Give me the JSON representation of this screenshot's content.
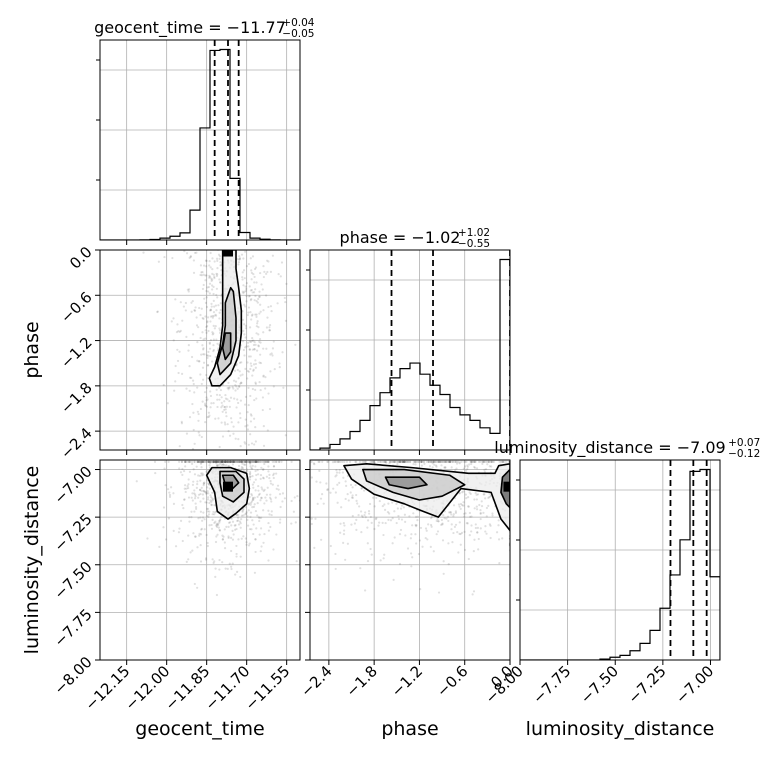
{
  "chart_data": {
    "type": "corner",
    "parameters": [
      {
        "name": "geocent_time",
        "label": "geocent_time",
        "range": [
          -12.25,
          -11.5
        ],
        "ticks": [
          -12.15,
          -12.0,
          -11.85,
          -11.7,
          -11.55
        ],
        "tick_labels": [
          "−12.15",
          "−12.00",
          "−11.85",
          "−11.70",
          "−11.55"
        ],
        "median": -11.77,
        "q_lo": -11.82,
        "q_hi": -11.73
      },
      {
        "name": "phase",
        "label": "phase",
        "range": [
          -2.65,
          0.0
        ],
        "ticks": [
          -2.4,
          -1.8,
          -1.2,
          -0.6,
          0.0
        ],
        "tick_labels": [
          "−2.4",
          "−1.8",
          "−1.2",
          "−0.6",
          "0.0"
        ],
        "median": -1.02,
        "q_lo": -1.57,
        "q_hi": 0.0
      },
      {
        "name": "luminosity_distance",
        "label": "luminosity_distance",
        "range": [
          -8.0,
          -6.95
        ],
        "ticks": [
          -8.0,
          -7.75,
          -7.5,
          -7.25,
          -7.0
        ],
        "tick_labels": [
          "−8.00",
          "−7.75",
          "−7.50",
          "−7.25",
          "−7.00"
        ],
        "median": -7.09,
        "q_lo": -7.21,
        "q_hi": -7.02
      }
    ],
    "titles": [
      {
        "main": "geocent_time = −11.77",
        "sup": "+0.04",
        "sub": "−0.05"
      },
      {
        "main": "phase = −1.02",
        "sup": "+1.02",
        "sub": "−0.55"
      },
      {
        "main": "luminosity_distance = −7.09",
        "sup": "+0.07",
        "sub": "−0.12"
      }
    ],
    "histograms": [
      {
        "param": "geocent_time",
        "edges": [
          -12.25,
          -12.2125,
          -12.175,
          -12.1375,
          -12.1,
          -12.0625,
          -12.025,
          -11.9875,
          -11.95,
          -11.9125,
          -11.875,
          -11.8375,
          -11.8,
          -11.7625,
          -11.725,
          -11.6875,
          -11.65,
          -11.6125,
          -11.575,
          -11.5375,
          -11.5
        ],
        "counts": [
          0,
          0,
          0,
          0,
          1,
          3,
          10,
          20,
          38,
          160,
          600,
          1015,
          1020,
          330,
          40,
          10,
          4,
          1,
          0,
          0
        ]
      },
      {
        "param": "phase",
        "edges": [
          -2.65,
          -2.5175,
          -2.385,
          -2.2525,
          -2.12,
          -1.9875,
          -1.855,
          -1.7225,
          -1.59,
          -1.4575,
          -1.325,
          -1.1925,
          -1.06,
          -0.9275,
          -0.795,
          -0.6625,
          -0.53,
          -0.3975,
          -0.265,
          -0.1325,
          0.0
        ],
        "counts": [
          0,
          10,
          30,
          60,
          100,
          160,
          240,
          310,
          390,
          440,
          470,
          410,
          350,
          300,
          230,
          190,
          160,
          120,
          90,
          1030
        ]
      },
      {
        "param": "luminosity_distance",
        "edges": [
          -8.0,
          -7.9475,
          -7.895,
          -7.8425,
          -7.79,
          -7.7375,
          -7.685,
          -7.6325,
          -7.58,
          -7.5275,
          -7.475,
          -7.4225,
          -7.37,
          -7.3175,
          -7.265,
          -7.2125,
          -7.16,
          -7.1075,
          -7.055,
          -7.0025,
          -6.95
        ],
        "counts": [
          0,
          0,
          0,
          0,
          0,
          0,
          0,
          0,
          5,
          15,
          25,
          50,
          90,
          160,
          280,
          460,
          650,
          1020,
          1030,
          450
        ]
      }
    ],
    "contours": [
      {
        "x": "geocent_time",
        "y": "phase",
        "levels": [
          [
            [
              -11.74,
              0.0
            ],
            [
              -11.74,
              -0.25
            ],
            [
              -11.73,
              -0.5
            ],
            [
              -11.72,
              -0.8
            ],
            [
              -11.72,
              -1.1
            ],
            [
              -11.73,
              -1.4
            ],
            [
              -11.76,
              -1.65
            ],
            [
              -11.8,
              -1.8
            ],
            [
              -11.83,
              -1.8
            ],
            [
              -11.84,
              -1.7
            ],
            [
              -11.82,
              -1.55
            ],
            [
              -11.8,
              -1.3
            ],
            [
              -11.79,
              -1.0
            ],
            [
              -11.79,
              -0.7
            ],
            [
              -11.79,
              -0.4
            ],
            [
              -11.79,
              0.0
            ]
          ],
          [
            [
              -11.75,
              -0.55
            ],
            [
              -11.74,
              -0.9
            ],
            [
              -11.74,
              -1.2
            ],
            [
              -11.76,
              -1.5
            ],
            [
              -11.8,
              -1.65
            ],
            [
              -11.81,
              -1.5
            ],
            [
              -11.79,
              -1.25
            ],
            [
              -11.78,
              -1.0
            ],
            [
              -11.78,
              -0.7
            ],
            [
              -11.76,
              -0.5
            ]
          ],
          [
            [
              -11.76,
              -1.1
            ],
            [
              -11.76,
              -1.35
            ],
            [
              -11.78,
              -1.45
            ],
            [
              -11.79,
              -1.3
            ],
            [
              -11.78,
              -1.1
            ]
          ]
        ]
      },
      {
        "x": "geocent_time",
        "y": "luminosity_distance",
        "levels": [
          [
            [
              -11.83,
              -6.99
            ],
            [
              -11.76,
              -6.99
            ],
            [
              -11.7,
              -7.02
            ],
            [
              -11.69,
              -7.1
            ],
            [
              -11.7,
              -7.18
            ],
            [
              -11.74,
              -7.23
            ],
            [
              -11.77,
              -7.26
            ],
            [
              -11.81,
              -7.22
            ],
            [
              -11.82,
              -7.12
            ],
            [
              -11.85,
              -7.03
            ]
          ],
          [
            [
              -11.8,
              -7.01
            ],
            [
              -11.74,
              -7.01
            ],
            [
              -11.71,
              -7.05
            ],
            [
              -11.71,
              -7.12
            ],
            [
              -11.75,
              -7.17
            ],
            [
              -11.79,
              -7.14
            ],
            [
              -11.8,
              -7.07
            ]
          ],
          [
            [
              -11.79,
              -7.03
            ],
            [
              -11.75,
              -7.03
            ],
            [
              -11.73,
              -7.07
            ],
            [
              -11.76,
              -7.11
            ],
            [
              -11.78,
              -7.08
            ]
          ]
        ]
      },
      {
        "x": "phase",
        "y": "luminosity_distance",
        "levels": [
          [
            [
              -2.2,
              -6.98
            ],
            [
              -1.9,
              -6.97
            ],
            [
              -1.3,
              -6.99
            ],
            [
              -0.55,
              -7.02
            ],
            [
              -0.2,
              -7.02
            ],
            [
              -0.15,
              -6.98
            ],
            [
              0.0,
              -6.97
            ],
            [
              0.0,
              -7.32
            ],
            [
              -0.12,
              -7.26
            ],
            [
              -0.25,
              -7.12
            ],
            [
              -0.65,
              -7.1
            ],
            [
              -0.95,
              -7.25
            ],
            [
              -1.15,
              -7.22
            ],
            [
              -1.4,
              -7.18
            ],
            [
              -1.8,
              -7.13
            ],
            [
              -2.1,
              -7.05
            ]
          ],
          [
            [
              -1.95,
              -7.0
            ],
            [
              -1.4,
              -7.0
            ],
            [
              -0.8,
              -7.03
            ],
            [
              -0.6,
              -7.08
            ],
            [
              -0.9,
              -7.14
            ],
            [
              -1.2,
              -7.16
            ],
            [
              -1.55,
              -7.12
            ],
            [
              -1.9,
              -7.06
            ]
          ],
          [
            [
              -1.65,
              -7.04
            ],
            [
              -1.2,
              -7.04
            ],
            [
              -1.1,
              -7.08
            ],
            [
              -1.35,
              -7.1
            ],
            [
              -1.6,
              -7.08
            ]
          ],
          [
            [
              0.0,
              -7.0
            ],
            [
              -0.1,
              -7.04
            ],
            [
              -0.12,
              -7.12
            ],
            [
              -0.05,
              -7.18
            ],
            [
              0.0,
              -7.2
            ]
          ]
        ]
      }
    ],
    "grid": true,
    "median_line_style": "dashed"
  }
}
